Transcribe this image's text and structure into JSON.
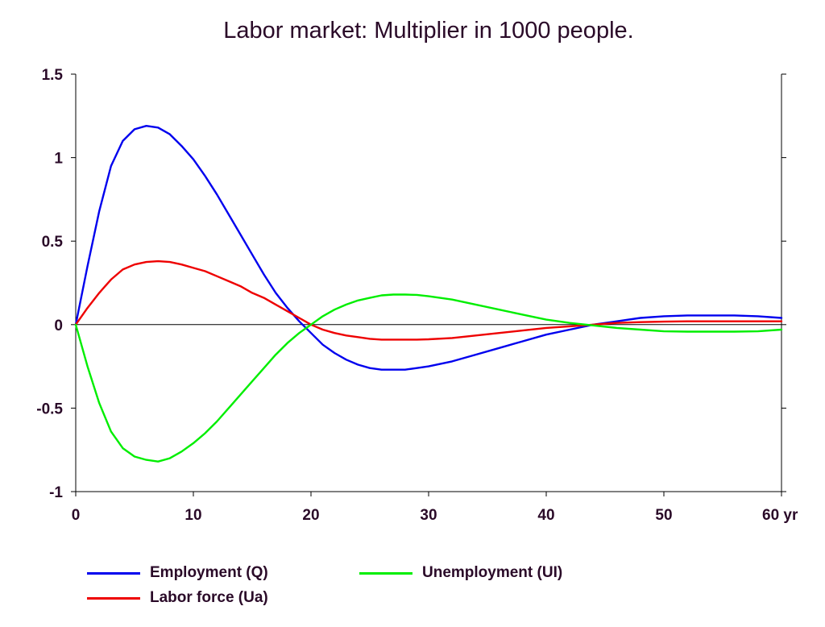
{
  "chart_data": {
    "type": "line",
    "title": "Labor market: Multiplier in 1000 people.",
    "xlabel": "",
    "ylabel": "",
    "x_unit": "yr",
    "xlim": [
      0,
      60
    ],
    "ylim": [
      -1,
      1.5
    ],
    "xticks": [
      0,
      10,
      20,
      30,
      40,
      50,
      60
    ],
    "xtick_labels": [
      "0",
      "10",
      "20",
      "30",
      "40",
      "50",
      "60 yr"
    ],
    "yticks": [
      -1,
      -0.5,
      0,
      0.5,
      1,
      1.5
    ],
    "ytick_labels": [
      "-1",
      "-0.5",
      "0",
      "0.5",
      "1",
      "1.5"
    ],
    "grid": false,
    "legend_position": "bottom",
    "x": [
      0,
      1,
      2,
      3,
      4,
      5,
      6,
      7,
      8,
      9,
      10,
      11,
      12,
      13,
      14,
      15,
      16,
      17,
      18,
      19,
      20,
      21,
      22,
      23,
      24,
      25,
      26,
      27,
      28,
      29,
      30,
      32,
      34,
      36,
      38,
      40,
      42,
      44,
      46,
      48,
      50,
      52,
      54,
      56,
      58,
      60
    ],
    "series": [
      {
        "name": "Employment (Q)",
        "color": "#0000ee",
        "values": [
          0,
          0.35,
          0.68,
          0.95,
          1.1,
          1.17,
          1.19,
          1.18,
          1.14,
          1.07,
          0.99,
          0.89,
          0.78,
          0.66,
          0.54,
          0.42,
          0.3,
          0.19,
          0.1,
          0.02,
          -0.05,
          -0.12,
          -0.17,
          -0.21,
          -0.24,
          -0.26,
          -0.27,
          -0.27,
          -0.27,
          -0.26,
          -0.25,
          -0.22,
          -0.18,
          -0.14,
          -0.1,
          -0.06,
          -0.03,
          0.0,
          0.02,
          0.04,
          0.05,
          0.055,
          0.055,
          0.055,
          0.05,
          0.04
        ]
      },
      {
        "name": "Labor force (Ua)",
        "color": "#ee0000",
        "values": [
          0,
          0.1,
          0.19,
          0.27,
          0.33,
          0.36,
          0.375,
          0.38,
          0.375,
          0.36,
          0.34,
          0.32,
          0.29,
          0.26,
          0.23,
          0.19,
          0.16,
          0.12,
          0.08,
          0.04,
          0.0,
          -0.03,
          -0.05,
          -0.065,
          -0.075,
          -0.085,
          -0.09,
          -0.09,
          -0.09,
          -0.09,
          -0.088,
          -0.08,
          -0.065,
          -0.05,
          -0.035,
          -0.02,
          -0.01,
          0.0,
          0.01,
          0.015,
          0.018,
          0.02,
          0.02,
          0.02,
          0.02,
          0.02
        ]
      },
      {
        "name": "Unemployment (UI)",
        "color": "#00ee00",
        "values": [
          0,
          -0.25,
          -0.47,
          -0.64,
          -0.74,
          -0.79,
          -0.81,
          -0.82,
          -0.8,
          -0.76,
          -0.71,
          -0.65,
          -0.58,
          -0.5,
          -0.42,
          -0.34,
          -0.26,
          -0.18,
          -0.11,
          -0.05,
          0.0,
          0.05,
          0.09,
          0.12,
          0.145,
          0.16,
          0.175,
          0.18,
          0.18,
          0.178,
          0.17,
          0.15,
          0.12,
          0.09,
          0.06,
          0.03,
          0.01,
          -0.005,
          -0.02,
          -0.03,
          -0.04,
          -0.042,
          -0.042,
          -0.042,
          -0.04,
          -0.03
        ]
      }
    ]
  }
}
